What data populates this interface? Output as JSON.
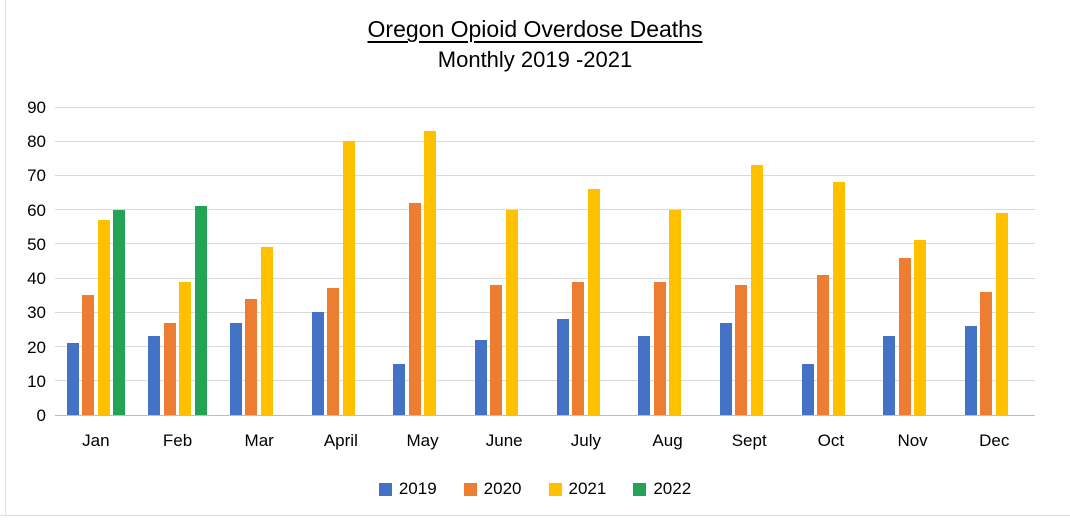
{
  "chart_data": {
    "type": "bar",
    "title": "Oregon Opioid Overdose Deaths",
    "subtitle": "Monthly 2019 -2021",
    "categories": [
      "Jan",
      "Feb",
      "Mar",
      "April",
      "May",
      "June",
      "July",
      "Aug",
      "Sept",
      "Oct",
      "Nov",
      "Dec"
    ],
    "series": [
      {
        "name": "2019",
        "color": "#4472C4",
        "values": [
          21,
          23,
          27,
          30,
          15,
          22,
          28,
          23,
          27,
          15,
          23,
          26
        ]
      },
      {
        "name": "2020",
        "color": "#ED7D31",
        "values": [
          35,
          27,
          34,
          37,
          62,
          38,
          39,
          39,
          38,
          41,
          46,
          36
        ]
      },
      {
        "name": "2021",
        "color": "#FFC000",
        "values": [
          57,
          39,
          49,
          80,
          83,
          60,
          66,
          60,
          73,
          68,
          51,
          59
        ]
      },
      {
        "name": "2022",
        "color": "#23A455",
        "values": [
          60,
          61,
          null,
          null,
          null,
          null,
          null,
          null,
          null,
          null,
          null,
          null
        ]
      }
    ],
    "ylim": [
      0,
      90
    ],
    "ytick_step": 10,
    "grid": true,
    "legend_position": "bottom"
  }
}
